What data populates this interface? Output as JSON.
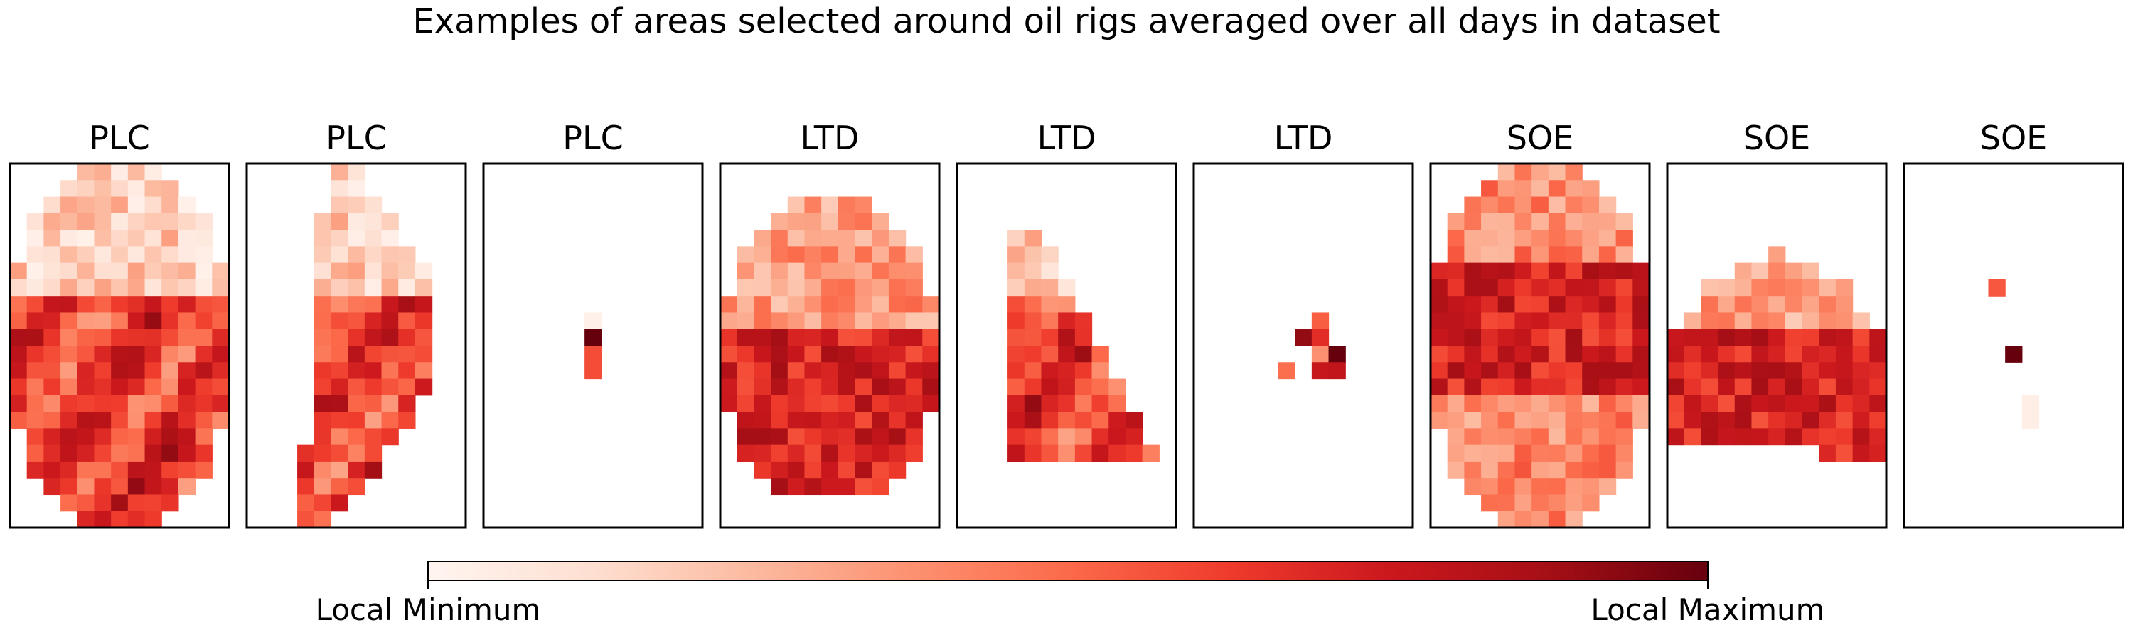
{
  "figure": {
    "title": "Examples of areas selected around oil rigs averaged over all days in dataset"
  },
  "colorbar": {
    "min_label": "Local Minimum",
    "max_label": "Local Maximum",
    "colormap": "Reds",
    "stops": [
      "#fff5f0",
      "#fee0d2",
      "#fcbba1",
      "#fc9272",
      "#fb6a4a",
      "#ef3b2c",
      "#cb181d",
      "#a50f15",
      "#67000d"
    ]
  },
  "chart_data": {
    "type": "heatmap",
    "colormap": "Reds",
    "value_range": [
      0,
      1
    ],
    "grid": {
      "rows": 22,
      "cols": 13
    },
    "panels": [
      {
        "title": "PLC",
        "region": "tall_ellipse",
        "pattern": "light_top",
        "seed": 11
      },
      {
        "title": "PLC",
        "region": "left_crescent",
        "pattern": "light_top",
        "seed": 23
      },
      {
        "title": "PLC",
        "region": "tiny_column",
        "pattern": "dark_top",
        "seed": 5
      },
      {
        "title": "LTD",
        "region": "round_blob",
        "pattern": "dark_bottom",
        "seed": 37
      },
      {
        "title": "LTD",
        "region": "triangle",
        "pattern": "light_top",
        "seed": 41
      },
      {
        "title": "LTD",
        "region": "tiny_triangle",
        "pattern": "mixed",
        "seed": 53
      },
      {
        "title": "SOE",
        "region": "tall_ellipse",
        "pattern": "dark_middle",
        "seed": 67
      },
      {
        "title": "SOE",
        "region": "half_dome",
        "pattern": "dark_bottom",
        "seed": 71
      },
      {
        "title": "SOE",
        "region": "scattered_points",
        "pattern": "sparse",
        "seed": 83
      }
    ]
  }
}
